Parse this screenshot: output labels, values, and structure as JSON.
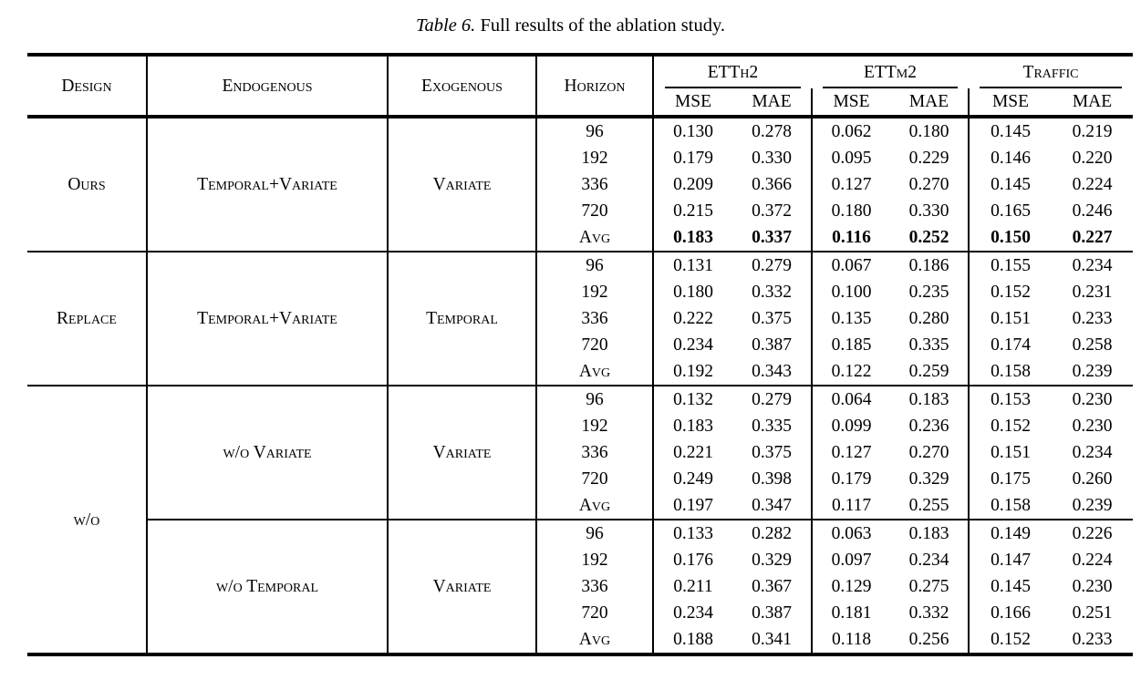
{
  "caption": {
    "number": "Table 6.",
    "text": " Full results of the ablation study."
  },
  "table": {
    "columns": {
      "design": "Design",
      "endogenous": "Endogenous",
      "exogenous": "Exogenous",
      "horizon": "Horizon"
    },
    "datasets": [
      {
        "name": "ETTh2",
        "metrics": [
          "MSE",
          "MAE"
        ]
      },
      {
        "name": "ETTm2",
        "metrics": [
          "MSE",
          "MAE"
        ]
      },
      {
        "name": "Traffic",
        "metrics": [
          "MSE",
          "MAE"
        ]
      }
    ],
    "groups": [
      {
        "design": "Ours",
        "subgroups": [
          {
            "endogenous": "Temporal+Variate",
            "exogenous": "Variate",
            "rows": [
              {
                "horizon": "96",
                "values": [
                  "0.130",
                  "0.278",
                  "0.062",
                  "0.180",
                  "0.145",
                  "0.219"
                ],
                "bold": false
              },
              {
                "horizon": "192",
                "values": [
                  "0.179",
                  "0.330",
                  "0.095",
                  "0.229",
                  "0.146",
                  "0.220"
                ],
                "bold": false
              },
              {
                "horizon": "336",
                "values": [
                  "0.209",
                  "0.366",
                  "0.127",
                  "0.270",
                  "0.145",
                  "0.224"
                ],
                "bold": false
              },
              {
                "horizon": "720",
                "values": [
                  "0.215",
                  "0.372",
                  "0.180",
                  "0.330",
                  "0.165",
                  "0.246"
                ],
                "bold": false
              },
              {
                "horizon": "Avg",
                "values": [
                  "0.183",
                  "0.337",
                  "0.116",
                  "0.252",
                  "0.150",
                  "0.227"
                ],
                "bold": true
              }
            ]
          }
        ]
      },
      {
        "design": "Replace",
        "subgroups": [
          {
            "endogenous": "Temporal+Variate",
            "exogenous": "Temporal",
            "rows": [
              {
                "horizon": "96",
                "values": [
                  "0.131",
                  "0.279",
                  "0.067",
                  "0.186",
                  "0.155",
                  "0.234"
                ],
                "bold": false
              },
              {
                "horizon": "192",
                "values": [
                  "0.180",
                  "0.332",
                  "0.100",
                  "0.235",
                  "0.152",
                  "0.231"
                ],
                "bold": false
              },
              {
                "horizon": "336",
                "values": [
                  "0.222",
                  "0.375",
                  "0.135",
                  "0.280",
                  "0.151",
                  "0.233"
                ],
                "bold": false
              },
              {
                "horizon": "720",
                "values": [
                  "0.234",
                  "0.387",
                  "0.185",
                  "0.335",
                  "0.174",
                  "0.258"
                ],
                "bold": false
              },
              {
                "horizon": "Avg",
                "values": [
                  "0.192",
                  "0.343",
                  "0.122",
                  "0.259",
                  "0.158",
                  "0.239"
                ],
                "bold": false
              }
            ]
          }
        ]
      },
      {
        "design": "w/o",
        "subgroups": [
          {
            "endogenous": "w/o Variate",
            "exogenous": "Variate",
            "rows": [
              {
                "horizon": "96",
                "values": [
                  "0.132",
                  "0.279",
                  "0.064",
                  "0.183",
                  "0.153",
                  "0.230"
                ],
                "bold": false
              },
              {
                "horizon": "192",
                "values": [
                  "0.183",
                  "0.335",
                  "0.099",
                  "0.236",
                  "0.152",
                  "0.230"
                ],
                "bold": false
              },
              {
                "horizon": "336",
                "values": [
                  "0.221",
                  "0.375",
                  "0.127",
                  "0.270",
                  "0.151",
                  "0.234"
                ],
                "bold": false
              },
              {
                "horizon": "720",
                "values": [
                  "0.249",
                  "0.398",
                  "0.179",
                  "0.329",
                  "0.175",
                  "0.260"
                ],
                "bold": false
              },
              {
                "horizon": "Avg",
                "values": [
                  "0.197",
                  "0.347",
                  "0.117",
                  "0.255",
                  "0.158",
                  "0.239"
                ],
                "bold": false
              }
            ]
          },
          {
            "endogenous": "w/o Temporal",
            "exogenous": "Variate",
            "rows": [
              {
                "horizon": "96",
                "values": [
                  "0.133",
                  "0.282",
                  "0.063",
                  "0.183",
                  "0.149",
                  "0.226"
                ],
                "bold": false
              },
              {
                "horizon": "192",
                "values": [
                  "0.176",
                  "0.329",
                  "0.097",
                  "0.234",
                  "0.147",
                  "0.224"
                ],
                "bold": false
              },
              {
                "horizon": "336",
                "values": [
                  "0.211",
                  "0.367",
                  "0.129",
                  "0.275",
                  "0.145",
                  "0.230"
                ],
                "bold": false
              },
              {
                "horizon": "720",
                "values": [
                  "0.234",
                  "0.387",
                  "0.181",
                  "0.332",
                  "0.166",
                  "0.251"
                ],
                "bold": false
              },
              {
                "horizon": "Avg",
                "values": [
                  "0.188",
                  "0.341",
                  "0.118",
                  "0.256",
                  "0.152",
                  "0.233"
                ],
                "bold": false
              }
            ]
          }
        ]
      }
    ]
  }
}
